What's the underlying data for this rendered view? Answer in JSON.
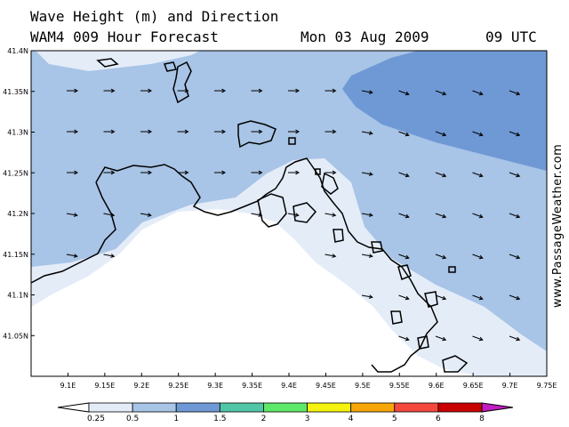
{
  "header": {
    "title_line1": "Wave Height (m) and Direction",
    "title_line2": "WAM4 009 Hour Forecast",
    "date": "Mon 03 Aug 2009",
    "time": "09 UTC"
  },
  "watermark": "www.PassageWeather.com",
  "map": {
    "lon_ticks": [
      "9.1E",
      "9.15E",
      "9.2E",
      "9.25E",
      "9.3E",
      "9.35E",
      "9.4E",
      "9.45E",
      "9.5E",
      "9.55E",
      "9.6E",
      "9.65E",
      "9.7E",
      "9.75E"
    ],
    "lat_ticks": [
      "41.05N",
      "41.1N",
      "41.15N",
      "41.2N",
      "41.25N",
      "41.3N",
      "41.35N",
      "41.4N"
    ],
    "lon_range": [
      9.05,
      9.75
    ],
    "lat_range": [
      41.0,
      41.4
    ],
    "colors": {
      "land": "#ffffff",
      "band_0_25": "#e4ecf8",
      "band_0_5": "#a8c4e6",
      "band_1": "#6f99d5",
      "coast": "#000000",
      "arrow": "#000000"
    },
    "wave_direction": "east-southeast"
  },
  "colorbar": {
    "labels": [
      "0.25",
      "0.5",
      "1",
      "1.5",
      "2",
      "3",
      "4",
      "5",
      "6",
      "8"
    ],
    "colors": [
      "#ffffff",
      "#e4ecf8",
      "#a8c4e6",
      "#6f99d5",
      "#4fc6a6",
      "#5ee86a",
      "#f3f30e",
      "#f7a60a",
      "#f4483e",
      "#c80000",
      "#c01cc0"
    ]
  }
}
